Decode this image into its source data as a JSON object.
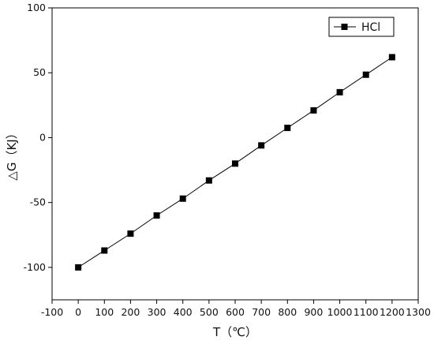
{
  "chart_data": {
    "type": "line",
    "title": "",
    "xlabel": "T（℃）",
    "ylabel": "△G（KJ）",
    "xlim": [
      -100,
      1300
    ],
    "ylim": [
      -125,
      100
    ],
    "x_ticks": [
      -100,
      0,
      100,
      200,
      300,
      400,
      500,
      600,
      700,
      800,
      900,
      1000,
      1100,
      1200,
      1300
    ],
    "y_ticks": [
      -100,
      -50,
      0,
      50,
      100
    ],
    "grid": false,
    "legend_position": "top-right",
    "series": [
      {
        "name": "HCl",
        "marker": "square",
        "color": "#000000",
        "x": [
          0,
          100,
          200,
          300,
          400,
          500,
          600,
          700,
          800,
          900,
          1000,
          1100,
          1200
        ],
        "values": [
          -100,
          -87,
          -74,
          -60,
          -47,
          -33,
          -20,
          -6,
          7.5,
          21,
          35,
          48.5,
          62
        ]
      }
    ]
  }
}
